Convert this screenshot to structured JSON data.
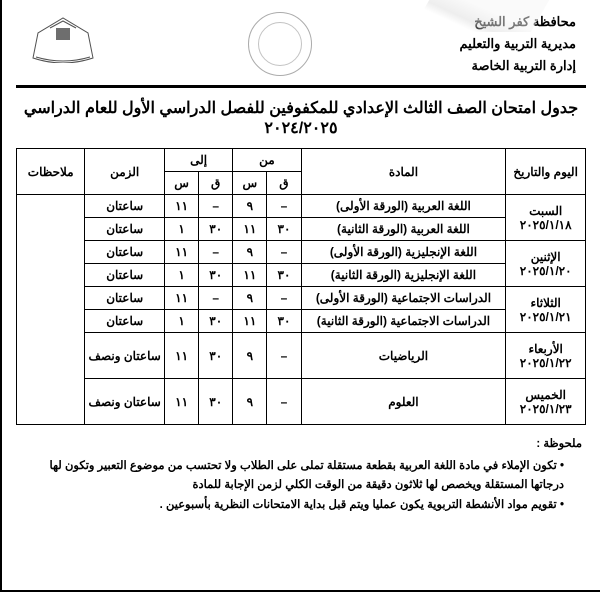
{
  "header": {
    "gov": "محافظة كفر الشيخ",
    "dir": "مديرية التربية والتعليم",
    "dept": "إدارة التربية الخاصة"
  },
  "title": "جدول امتحان الصف الثالث الإعدادي للمكفوفين للفصل الدراسي الأول للعام الدراسي ٢٠٢٤/٢٠٢٥",
  "cols": {
    "date": "اليوم والتاريخ",
    "subject": "المادة",
    "from": "من",
    "to": "إلى",
    "q": "ق",
    "s": "س",
    "duration": "الزمن",
    "notes": "ملاحظات"
  },
  "rows": [
    {
      "day": "السبت",
      "date": "٢٠٢٥/١/١٨",
      "subj": "اللغة العربية (الورقة الأولى)",
      "fq": "–",
      "fs": "٩",
      "tq": "–",
      "ts": "١١",
      "dur": "ساعتان"
    },
    {
      "subj": "اللغة العربية (الورقة الثانية)",
      "fq": "٣٠",
      "fs": "١١",
      "tq": "٣٠",
      "ts": "١",
      "dur": "ساعتان"
    },
    {
      "day": "الإثنين",
      "date": "٢٠٢٥/١/٢٠",
      "subj": "اللغة الإنجليزية (الورقة الأولى)",
      "fq": "–",
      "fs": "٩",
      "tq": "–",
      "ts": "١١",
      "dur": "ساعتان"
    },
    {
      "subj": "اللغة الإنجليزية (الورقة الثانية)",
      "fq": "٣٠",
      "fs": "١١",
      "tq": "٣٠",
      "ts": "١",
      "dur": "ساعتان"
    },
    {
      "day": "الثلاثاء",
      "date": "٢٠٢٥/١/٢١",
      "subj": "الدراسات الاجتماعية (الورقة الأولى)",
      "fq": "–",
      "fs": "٩",
      "tq": "–",
      "ts": "١١",
      "dur": "ساعتان"
    },
    {
      "subj": "الدراسات الاجتماعية (الورقة الثانية)",
      "fq": "٣٠",
      "fs": "١١",
      "tq": "٣٠",
      "ts": "١",
      "dur": "ساعتان"
    },
    {
      "day": "الأربعاء",
      "date": "٢٠٢٥/١/٢٢",
      "subj": "الرياضيات",
      "fq": "–",
      "fs": "٩",
      "tq": "٣٠",
      "ts": "١١",
      "dur": "ساعتان ونصف",
      "single": true
    },
    {
      "day": "الخميس",
      "date": "٢٠٢٥/١/٢٣",
      "subj": "العلوم",
      "fq": "–",
      "fs": "٩",
      "tq": "٣٠",
      "ts": "١١",
      "dur": "ساعتان ونصف",
      "single": true
    }
  ],
  "notes_title": "ملحوظة :",
  "notes": [
    "تكون الإملاء في مادة اللغة العربية بقطعة مستقلة تملى على الطلاب ولا تحتسب من موضوع التعبير وتكون لها درجاتها المستقلة ويخصص لها ثلاثون دقيقة من الوقت الكلي لزمن الإجابة للمادة",
    "تقويم مواد الأنشطة التربوية يكون عمليا ويتم قبل بداية الامتحانات النظرية بأسبوعين ."
  ]
}
